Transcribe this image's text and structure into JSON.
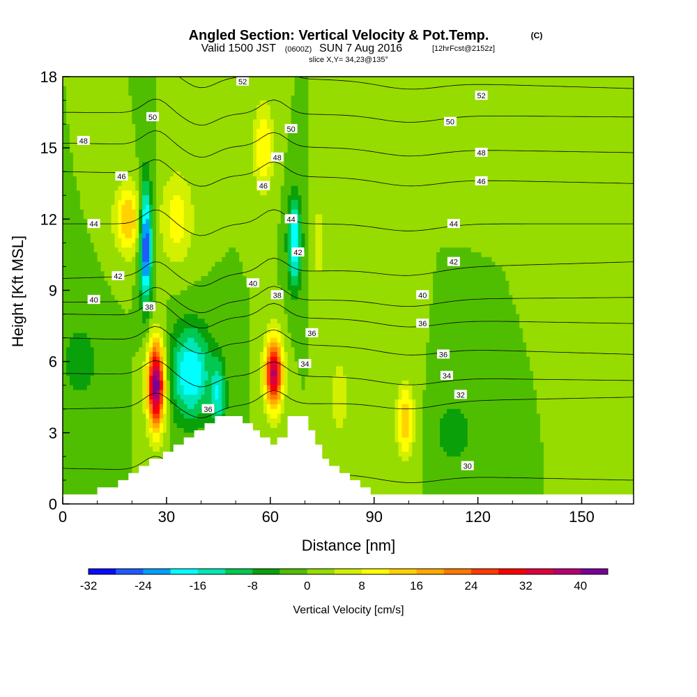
{
  "title": {
    "main": "Angled Section: Vertical Velocity & Pot.Temp.",
    "main_suffix": "(C)",
    "valid_a": "Valid 1500 JST",
    "valid_b": "(0600Z)",
    "valid_c": "SUN 7 Aug 2016",
    "valid_d": "[12hrFcst@2152z]",
    "slice": "slice X,Y= 34,23@135°"
  },
  "chart_data": {
    "type": "heatmap",
    "xlabel": "Distance [nm]",
    "ylabel": "Height [Kft MSL]",
    "xlim": [
      0,
      165
    ],
    "ylim": [
      0,
      18
    ],
    "xticks": [
      0,
      30,
      60,
      90,
      120,
      150
    ],
    "yticks": [
      0,
      3,
      6,
      9,
      12,
      15,
      18
    ],
    "terrain": [
      [
        0,
        0.4
      ],
      [
        10,
        0.4
      ],
      [
        10,
        0.7
      ],
      [
        16,
        0.7
      ],
      [
        16,
        1.0
      ],
      [
        19,
        1.0
      ],
      [
        19,
        1.3
      ],
      [
        22,
        1.3
      ],
      [
        22,
        1.6
      ],
      [
        25,
        1.6
      ],
      [
        25,
        1.9
      ],
      [
        29,
        1.9
      ],
      [
        29,
        2.2
      ],
      [
        32,
        2.2
      ],
      [
        32,
        2.5
      ],
      [
        35,
        2.5
      ],
      [
        35,
        2.8
      ],
      [
        38,
        2.8
      ],
      [
        38,
        3.1
      ],
      [
        41,
        3.1
      ],
      [
        41,
        3.4
      ],
      [
        44,
        3.4
      ],
      [
        44,
        3.7
      ],
      [
        52,
        3.7
      ],
      [
        52,
        3.4
      ],
      [
        55,
        3.4
      ],
      [
        55,
        3.1
      ],
      [
        57,
        3.1
      ],
      [
        57,
        2.8
      ],
      [
        60,
        2.8
      ],
      [
        60,
        2.5
      ],
      [
        62,
        2.5
      ],
      [
        62,
        2.8
      ],
      [
        65,
        2.8
      ],
      [
        65,
        3.7
      ],
      [
        71,
        3.7
      ],
      [
        71,
        3.1
      ],
      [
        73,
        3.1
      ],
      [
        73,
        2.5
      ],
      [
        75,
        2.5
      ],
      [
        75,
        1.9
      ],
      [
        77,
        1.9
      ],
      [
        77,
        1.6
      ],
      [
        80,
        1.6
      ],
      [
        80,
        1.3
      ],
      [
        83,
        1.3
      ],
      [
        83,
        1.0
      ],
      [
        86,
        1.0
      ],
      [
        86,
        0.7
      ],
      [
        89,
        0.7
      ],
      [
        89,
        0.4
      ],
      [
        165,
        0.4
      ]
    ],
    "vertical_velocity": {
      "name": "Vertical Velocity [cm/s]",
      "background": 0,
      "cells": [
        {
          "x": 27,
          "y": 5.0,
          "sx": 2.5,
          "sy": 1.8,
          "v": 44
        },
        {
          "x": 61,
          "y": 5.5,
          "sx": 2.5,
          "sy": 1.5,
          "v": 38
        },
        {
          "x": 19,
          "y": 12.0,
          "sx": 4,
          "sy": 1.5,
          "v": 16
        },
        {
          "x": 24,
          "y": 11.0,
          "sx": 1.8,
          "sy": 2.5,
          "v": -30
        },
        {
          "x": 37,
          "y": 5.5,
          "sx": 6,
          "sy": 2.0,
          "v": -20
        },
        {
          "x": 45,
          "y": 4.5,
          "sx": 2.2,
          "sy": 1.5,
          "v": -14
        },
        {
          "x": 67,
          "y": 11.0,
          "sx": 2.0,
          "sy": 2.0,
          "v": -20
        },
        {
          "x": 58,
          "y": 15.0,
          "sx": 3.0,
          "sy": 2.0,
          "v": 12
        },
        {
          "x": 33,
          "y": 12.0,
          "sx": 5.0,
          "sy": 2.0,
          "v": 10
        },
        {
          "x": 99,
          "y": 3.5,
          "sx": 2.5,
          "sy": 1.5,
          "v": 16
        },
        {
          "x": 113,
          "y": 3.0,
          "sx": 5.0,
          "sy": 1.3,
          "v": -8
        },
        {
          "x": 80,
          "y": 4.5,
          "sx": 3.0,
          "sy": 1.5,
          "v": 8
        },
        {
          "x": 74,
          "y": 11.0,
          "sx": 2.0,
          "sy": 2.0,
          "v": 6
        },
        {
          "x": 150,
          "y": 15.0,
          "sx": 4.0,
          "sy": 3.0,
          "v": 3
        },
        {
          "x": 5,
          "y": 6.0,
          "sx": 6.0,
          "sy": 2.0,
          "v": -6
        }
      ]
    },
    "potential_temperature": [
      {
        "level": 30,
        "h0": 1.5,
        "h1": 1.0
      },
      {
        "level": 32,
        "h0": 4.0,
        "h1": 4.5
      },
      {
        "level": 34,
        "h0": 5.5,
        "h1": 5.2
      },
      {
        "level": 36,
        "h0": 7.0,
        "h1": 6.3
      },
      {
        "level": 38,
        "h0": 8.0,
        "h1": 7.6
      },
      {
        "level": 40,
        "h0": 8.5,
        "h1": 8.7
      },
      {
        "level": 42,
        "h0": 9.5,
        "h1": 10.2
      },
      {
        "level": 44,
        "h0": 11.8,
        "h1": 11.8
      },
      {
        "level": 46,
        "h0": 14.0,
        "h1": 13.5
      },
      {
        "level": 48,
        "h0": 15.2,
        "h1": 14.8
      },
      {
        "level": 50,
        "h0": 16.5,
        "h1": 16.3
      },
      {
        "level": 52,
        "h0": 18.2,
        "h1": 17.5
      }
    ],
    "contour_labels": [
      {
        "text": "52",
        "x": 52,
        "y": 17.8
      },
      {
        "text": "52",
        "x": 121,
        "y": 17.2
      },
      {
        "text": "50",
        "x": 26,
        "y": 16.3
      },
      {
        "text": "50",
        "x": 66,
        "y": 15.8
      },
      {
        "text": "50",
        "x": 112,
        "y": 16.1
      },
      {
        "text": "48",
        "x": 6,
        "y": 15.3
      },
      {
        "text": "48",
        "x": 62,
        "y": 14.6
      },
      {
        "text": "48",
        "x": 121,
        "y": 14.8
      },
      {
        "text": "46",
        "x": 17,
        "y": 13.8
      },
      {
        "text": "46",
        "x": 58,
        "y": 13.4
      },
      {
        "text": "46",
        "x": 121,
        "y": 13.6
      },
      {
        "text": "44",
        "x": 9,
        "y": 11.8
      },
      {
        "text": "44",
        "x": 66,
        "y": 12.0
      },
      {
        "text": "44",
        "x": 113,
        "y": 11.8
      },
      {
        "text": "42",
        "x": 16,
        "y": 9.6
      },
      {
        "text": "42",
        "x": 68,
        "y": 10.6
      },
      {
        "text": "42",
        "x": 113,
        "y": 10.2
      },
      {
        "text": "40",
        "x": 9,
        "y": 8.6
      },
      {
        "text": "40",
        "x": 55,
        "y": 9.3
      },
      {
        "text": "40",
        "x": 104,
        "y": 8.8
      },
      {
        "text": "38",
        "x": 25,
        "y": 8.3
      },
      {
        "text": "38",
        "x": 62,
        "y": 8.8
      },
      {
        "text": "36",
        "x": 72,
        "y": 7.2
      },
      {
        "text": "36",
        "x": 104,
        "y": 7.6
      },
      {
        "text": "36",
        "x": 110,
        "y": 6.3
      },
      {
        "text": "36",
        "x": 42,
        "y": 4.0
      },
      {
        "text": "34",
        "x": 70,
        "y": 5.9
      },
      {
        "text": "34",
        "x": 111,
        "y": 5.4
      },
      {
        "text": "32",
        "x": 115,
        "y": 4.6
      },
      {
        "text": "30",
        "x": 117,
        "y": 1.6
      }
    ],
    "colorbar": {
      "label": "Vertical Velocity [cm/s]",
      "ticks": [
        -32,
        -24,
        -16,
        -8,
        0,
        8,
        16,
        24,
        32,
        40
      ],
      "min": -32,
      "max": 44,
      "colors": [
        "#0a0aff",
        "#1e5aff",
        "#00a0ff",
        "#00ffff",
        "#00e6b4",
        "#00c850",
        "#0aa00a",
        "#50be00",
        "#96dc00",
        "#d2f000",
        "#ffff00",
        "#ffd200",
        "#ffaa00",
        "#ff7800",
        "#ff3c00",
        "#ff0000",
        "#dc003c",
        "#b4006e",
        "#780096"
      ]
    }
  }
}
